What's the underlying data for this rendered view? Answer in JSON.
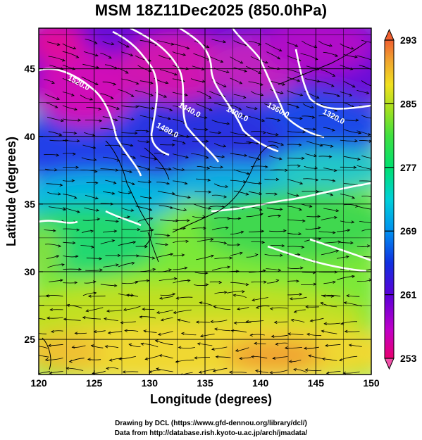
{
  "title": "MSM 18Z11Dec2025 (850.0hPa)",
  "credits": [
    "Drawing by DCL (https://www.gfd-dennou.org/library/dcl/)",
    "Data from http://database.rish.kyoto-u.ac.jp/arch/jmadata/"
  ],
  "chart_data": {
    "type": "heatmap",
    "xlabel": "Longitude (degrees)",
    "ylabel": "Latitude  (degrees)",
    "xlim": [
      120,
      150
    ],
    "ylim": [
      22.4,
      48
    ],
    "x_ticks": [
      "120",
      "125",
      "130",
      "135",
      "140",
      "145",
      "150"
    ],
    "x_tick_values": [
      120,
      125,
      130,
      135,
      140,
      145,
      150
    ],
    "y_ticks": [
      "25",
      "30",
      "35",
      "40",
      "45"
    ],
    "y_tick_values": [
      25,
      30,
      35,
      40,
      45
    ],
    "grid": true,
    "colorbar": {
      "orientation": "vertical",
      "placement": "right",
      "range": [
        253,
        293
      ],
      "tick_labels": [
        "293",
        "285",
        "277",
        "269",
        "261",
        "253"
      ],
      "tick_values": [
        293,
        285,
        277,
        269,
        261,
        253
      ],
      "colors": [
        "#e8006e",
        "#c000c8",
        "#5a00d8",
        "#1030e0",
        "#0090f0",
        "#00d0d8",
        "#00e070",
        "#30e040",
        "#a0e020",
        "#f0e020",
        "#f0a030",
        "#f06030"
      ]
    },
    "contour_labels": [
      {
        "text": "1520.0",
        "lon": 123.5,
        "lat": 43.8
      },
      {
        "text": "1440.0",
        "lon": 133.5,
        "lat": 41.8
      },
      {
        "text": "1480.0",
        "lon": 131.5,
        "lat": 40.3
      },
      {
        "text": "1400.0",
        "lon": 137.8,
        "lat": 41.5
      },
      {
        "text": "1360.0",
        "lon": 141.5,
        "lat": 41.8
      },
      {
        "text": "1320.0",
        "lon": 146.5,
        "lat": 41.3
      }
    ],
    "colors": {
      "contour": "#ffffff",
      "streamline": "#000000",
      "coastline": "#000000"
    }
  }
}
